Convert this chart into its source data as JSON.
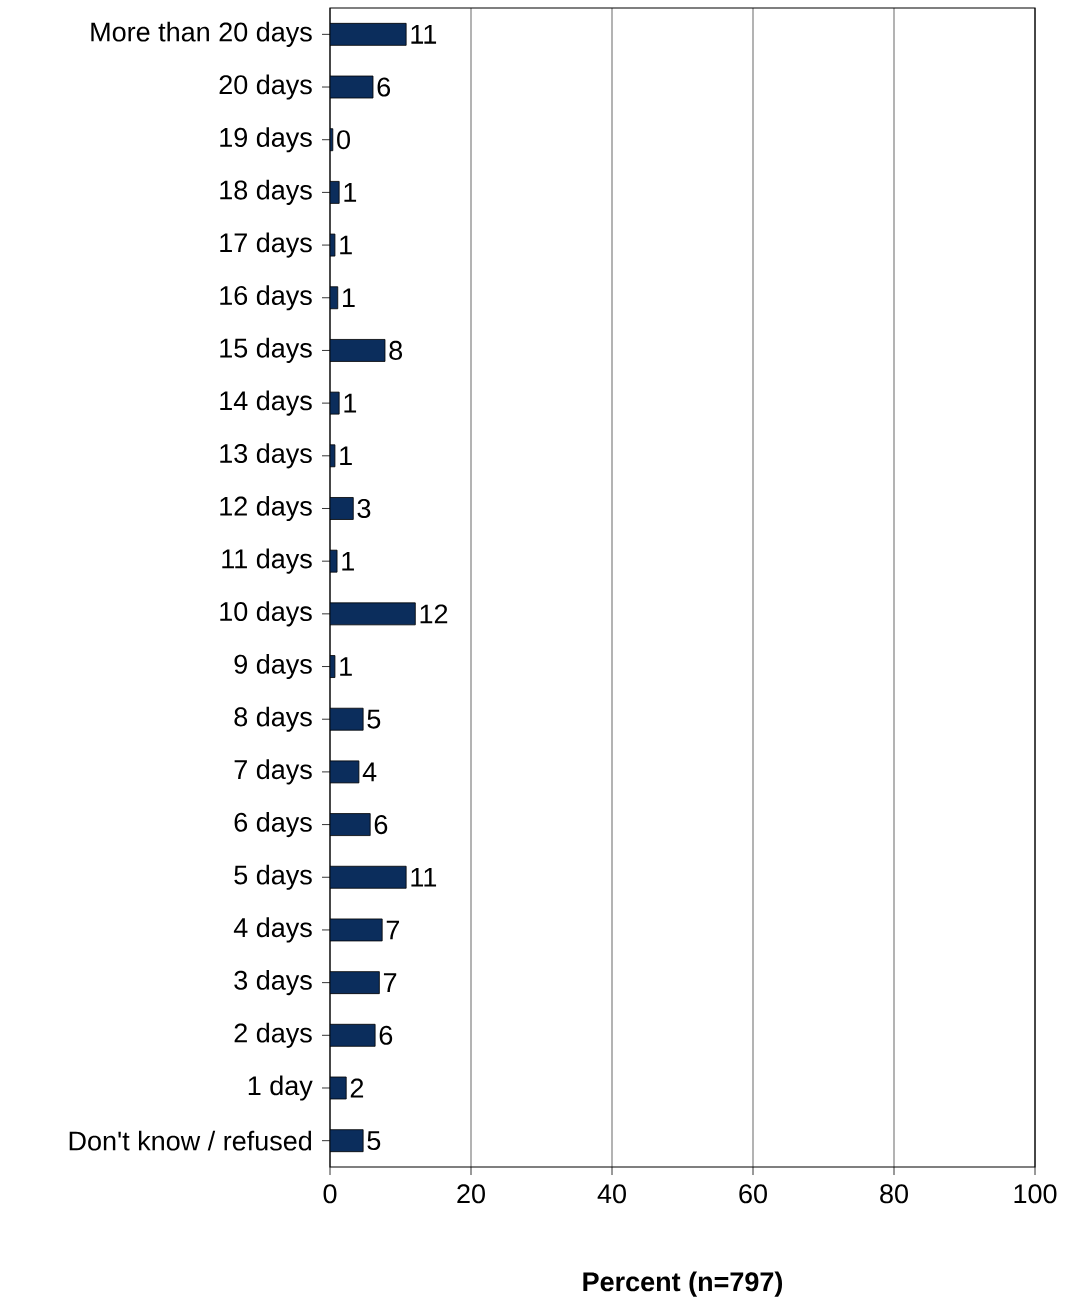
{
  "chart_data": {
    "type": "bar",
    "orientation": "horizontal",
    "xlabel": "**Percent (n=797)**",
    "categories": [
      "More than 20 days",
      "20 days",
      "19 days",
      "18 days",
      "17 days",
      "16 days",
      "15 days",
      "14 days",
      "13 days",
      "12 days",
      "11 days",
      "10 days",
      "9 days",
      "8 days",
      "7 days",
      "6 days",
      "5 days",
      "4 days",
      "3 days",
      "2 days",
      "1 day",
      "Don't know / refused"
    ],
    "values": [
      10.8,
      6.1,
      0.4,
      1.3,
      0.7,
      1.1,
      7.8,
      1.3,
      0.7,
      3.3,
      1.0,
      12.1,
      0.7,
      4.7,
      4.1,
      5.7,
      10.8,
      7.4,
      7.0,
      6.4,
      2.3,
      4.7
    ],
    "value_labels": [
      "11",
      "6",
      "0",
      "1",
      "1",
      "1",
      "8",
      "1",
      "1",
      "3",
      "1",
      "12",
      "1",
      "5",
      "4",
      "6",
      "11",
      "7",
      "7",
      "6",
      "2",
      "5"
    ],
    "color": "#0b2d5c",
    "xlim": [
      0,
      100
    ],
    "xticks": [
      0,
      20,
      40,
      60,
      80,
      100
    ],
    "grid": "x"
  }
}
